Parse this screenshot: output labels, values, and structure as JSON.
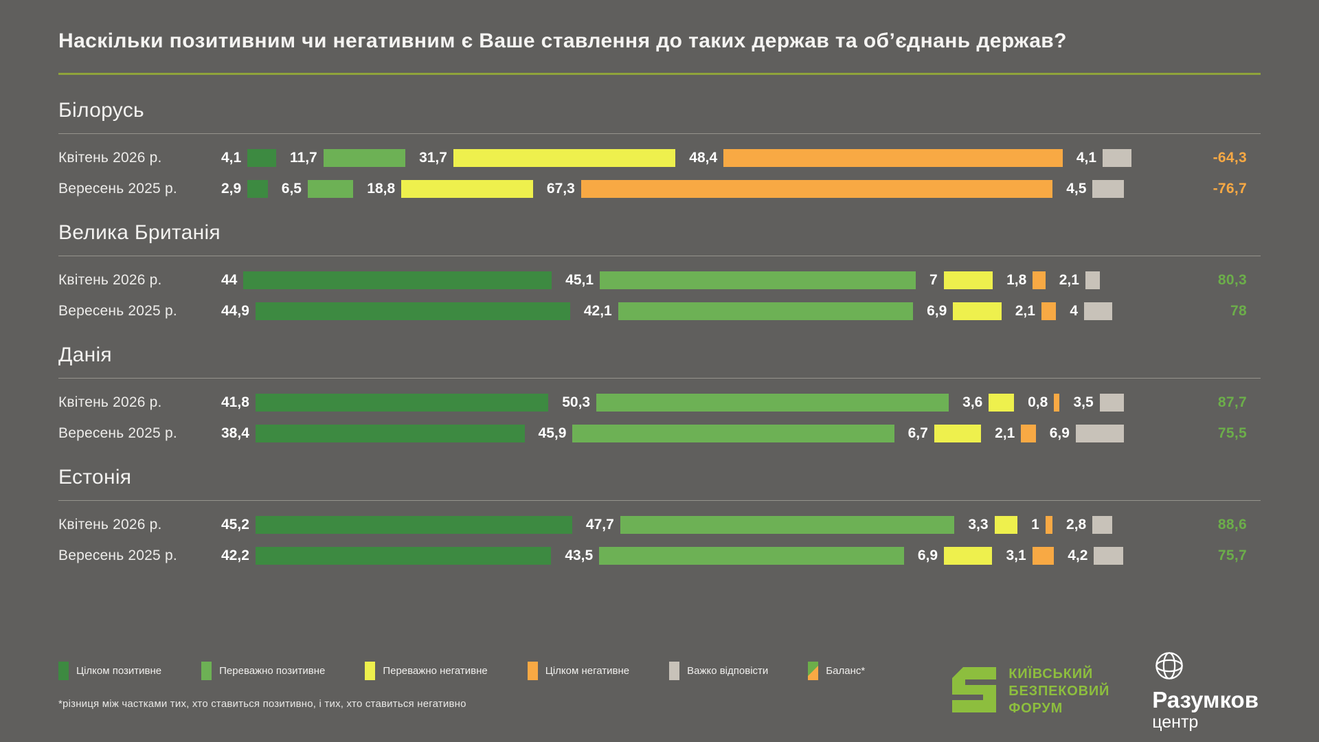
{
  "title": "Наскільки позитивним чи негативним є Ваше ставлення до таких держав та об’єднань держав?",
  "colors": {
    "background": "#605F5D",
    "title_underline": "#8FA43B",
    "divider": "#96948D",
    "balance_positive": "#6CAE4A",
    "balance_negative": "#F8A944",
    "ksf_green": "#8DBE3E"
  },
  "legend": [
    {
      "label": "Цілком позитивне",
      "swatch": "#3D8A41"
    },
    {
      "label": "Переважно позитивне",
      "swatch": "#6DB155"
    },
    {
      "label": "Переважно негативне",
      "swatch": "#EEF04D"
    },
    {
      "label": "Цілком негативне",
      "swatch": "#F8A944"
    },
    {
      "label": "Важко відповісти",
      "swatch": "#C8C2B9"
    },
    {
      "label": "Баланс*",
      "swatch": "balance"
    }
  ],
  "footnote": "*різниця між частками тих, хто ставиться позитивно, і тих, хто ставиться негативно",
  "logos": {
    "ksf": {
      "lines": [
        "КИЇВСЬКИЙ",
        "БЕЗПЕКОВИЙ",
        "ФОРУМ"
      ]
    },
    "razumkov": {
      "name": "Разумков",
      "sub": "центр"
    }
  },
  "chart_data": {
    "type": "bar",
    "orientation": "horizontal-stacked",
    "unit": "%",
    "xlim": [
      0,
      100
    ],
    "legend_position": "bottom-left",
    "categories": [
      {
        "name": "Цілком позитивне",
        "color": "#3D8A41"
      },
      {
        "name": "Переважно позитивне",
        "color": "#6DB155"
      },
      {
        "name": "Переважно негативне",
        "color": "#EEF04D"
      },
      {
        "name": "Цілком негативне",
        "color": "#F8A944"
      },
      {
        "name": "Важко відповісти",
        "color": "#C8C2B9"
      }
    ],
    "sections": [
      {
        "country": "Білорусь",
        "rows": [
          {
            "period": "Квітень 2026 р.",
            "values": [
              4.1,
              11.7,
              31.7,
              48.4,
              4.1
            ],
            "display": [
              "4,1",
              "11,7",
              "31,7",
              "48,4",
              "4,1"
            ],
            "balance": -64.3,
            "balance_display": "-64,3"
          },
          {
            "period": "Вересень 2025 р.",
            "values": [
              2.9,
              6.5,
              18.8,
              67.3,
              4.5
            ],
            "display": [
              "2,9",
              "6,5",
              "18,8",
              "67,3",
              "4,5"
            ],
            "balance": -76.7,
            "balance_display": "-76,7"
          }
        ]
      },
      {
        "country": "Велика Британія",
        "rows": [
          {
            "period": "Квітень 2026 р.",
            "values": [
              44,
              45.1,
              7,
              1.8,
              2.1
            ],
            "display": [
              "44",
              "45,1",
              "7",
              "1,8",
              "2,1"
            ],
            "balance": 80.3,
            "balance_display": "80,3"
          },
          {
            "period": "Вересень 2025 р.",
            "values": [
              44.9,
              42.1,
              6.9,
              2.1,
              4
            ],
            "display": [
              "44,9",
              "42,1",
              "6,9",
              "2,1",
              "4"
            ],
            "balance": 78,
            "balance_display": "78"
          }
        ]
      },
      {
        "country": "Данія",
        "rows": [
          {
            "period": "Квітень 2026 р.",
            "values": [
              41.8,
              50.3,
              3.6,
              0.8,
              3.5
            ],
            "display": [
              "41,8",
              "50,3",
              "3,6",
              "0,8",
              "3,5"
            ],
            "balance": 87.7,
            "balance_display": "87,7"
          },
          {
            "period": "Вересень 2025 р.",
            "values": [
              38.4,
              45.9,
              6.7,
              2.1,
              6.9
            ],
            "display": [
              "38,4",
              "45,9",
              "6,7",
              "2,1",
              "6,9"
            ],
            "balance": 75.5,
            "balance_display": "75,5"
          }
        ]
      },
      {
        "country": "Естонія",
        "rows": [
          {
            "period": "Квітень 2026 р.",
            "values": [
              45.2,
              47.7,
              3.3,
              1,
              2.8
            ],
            "display": [
              "45,2",
              "47,7",
              "3,3",
              "1",
              "2,8"
            ],
            "balance": 88.6,
            "balance_display": "88,6"
          },
          {
            "period": "Вересень 2025 р.",
            "values": [
              42.2,
              43.5,
              6.9,
              3.1,
              4.2
            ],
            "display": [
              "42,2",
              "43,5",
              "6,9",
              "3,1",
              "4,2"
            ],
            "balance": 75.7,
            "balance_display": "75,7"
          }
        ]
      }
    ]
  }
}
